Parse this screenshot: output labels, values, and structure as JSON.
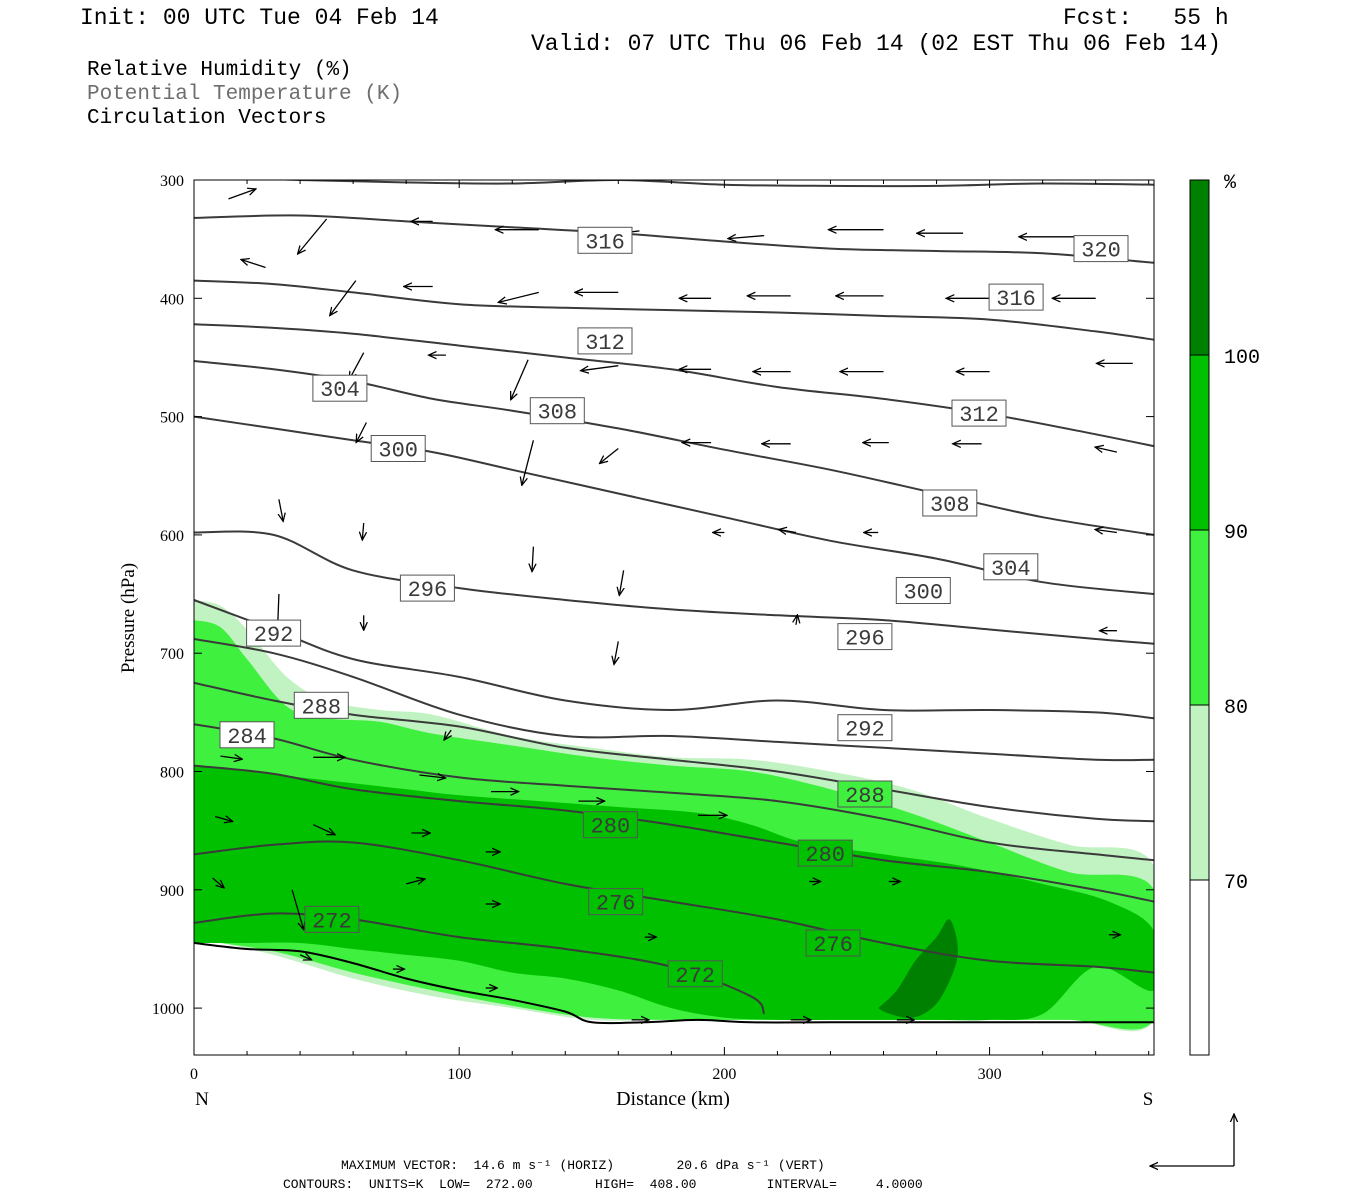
{
  "header": {
    "init": "Init: 00 UTC Tue 04 Feb 14",
    "fcst": "Fcst:   55 h",
    "valid": "Valid: 07 UTC Thu 06 Feb 14 (02 EST Thu 06 Feb 14)"
  },
  "legend_lines": [
    "Relative Humidity (%)",
    "Potential Temperature (K)",
    "Circulation Vectors"
  ],
  "footer": {
    "line1": "MAXIMUM VECTOR:  14.6 m s⁻¹ (HORIZ)        20.6 dPa s⁻¹ (VERT)",
    "line2": "CONTOURS:  UNITS=K  LOW=  272.00        HIGH=  408.00         INTERVAL=     4.0000"
  },
  "colors": {
    "rh_70_80": "#c1f2c1",
    "rh_80_90": "#3ff03f",
    "rh_90_100": "#00c000",
    "rh_100": "#008000",
    "contour": "#3a3a3a"
  },
  "chart_data": {
    "type": "cross-section",
    "xlabel": "Distance (km)",
    "ylabel": "Pressure (hPa)",
    "xlim": [
      0,
      362
    ],
    "ylim": [
      1040,
      300
    ],
    "xticks": [
      "0",
      "100",
      "200",
      "300"
    ],
    "yticks": [
      "300",
      "400",
      "500",
      "600",
      "700",
      "800",
      "900",
      "1000"
    ],
    "x_end_labels": {
      "left": "N",
      "right": "S"
    },
    "colorbar": {
      "unit": "%",
      "levels": [
        "70",
        "80",
        "90",
        "100"
      ],
      "fills": [
        "#ffffff",
        "#c1f2c1",
        "#3ff03f",
        "#00c000",
        "#008000"
      ]
    },
    "theta_contours": [
      {
        "label": "320",
        "x": [
          0,
          40,
          80,
          120,
          160,
          200,
          240,
          280,
          320,
          362
        ],
        "p": [
          297,
          300,
          302,
          303,
          300,
          304,
          305,
          305,
          303,
          304
        ]
      },
      {
        "label": "316",
        "x": [
          0,
          40,
          80,
          120,
          160,
          200,
          240,
          280,
          320,
          362
        ],
        "p": [
          332,
          330,
          335,
          340,
          345,
          352,
          358,
          360,
          362,
          370
        ]
      },
      {
        "label": "316",
        "x": [
          0,
          30,
          60,
          100,
          140,
          180,
          220,
          260,
          300,
          340,
          362
        ],
        "p": [
          385,
          388,
          395,
          405,
          408,
          410,
          412,
          415,
          418,
          428,
          435
        ]
      },
      {
        "label": "312",
        "x": [
          0,
          30,
          60,
          100,
          140,
          180,
          220,
          260,
          300,
          340,
          362
        ],
        "p": [
          422,
          425,
          430,
          440,
          450,
          460,
          475,
          485,
          498,
          515,
          525
        ]
      },
      {
        "label": "308",
        "x": [
          0,
          30,
          60,
          90,
          120,
          160,
          200,
          240,
          280,
          320,
          362
        ],
        "p": [
          453,
          460,
          470,
          485,
          495,
          510,
          528,
          545,
          565,
          585,
          600
        ]
      },
      {
        "label": "304",
        "x": [
          0,
          30,
          60,
          90,
          120,
          160,
          200,
          240,
          280,
          320,
          362
        ],
        "p": [
          500,
          510,
          520,
          530,
          545,
          565,
          585,
          605,
          620,
          640,
          650
        ]
      },
      {
        "label": "300",
        "x": [
          0,
          30,
          60,
          100,
          140,
          180,
          220,
          260,
          300,
          340,
          362
        ],
        "p": [
          598,
          600,
          630,
          645,
          655,
          663,
          668,
          672,
          680,
          688,
          692
        ]
      },
      {
        "label": "296",
        "x": [
          0,
          30,
          60,
          100,
          140,
          180,
          220,
          260,
          300,
          340,
          362
        ],
        "p": [
          655,
          680,
          705,
          720,
          740,
          748,
          740,
          748,
          748,
          750,
          755
        ]
      },
      {
        "label": "292",
        "x": [
          0,
          30,
          60,
          100,
          140,
          180,
          220,
          260,
          300,
          340,
          362
        ],
        "p": [
          688,
          700,
          720,
          752,
          770,
          770,
          775,
          780,
          785,
          790,
          790
        ]
      },
      {
        "label": "288",
        "x": [
          0,
          30,
          60,
          100,
          140,
          180,
          220,
          260,
          300,
          340,
          362
        ],
        "p": [
          725,
          740,
          752,
          762,
          780,
          790,
          800,
          815,
          830,
          840,
          842
        ]
      },
      {
        "label": "284",
        "x": [
          0,
          30,
          60,
          100,
          140,
          180,
          220,
          260,
          300,
          340,
          362
        ],
        "p": [
          760,
          772,
          790,
          805,
          812,
          818,
          825,
          840,
          860,
          870,
          875
        ]
      },
      {
        "label": "280",
        "x": [
          0,
          30,
          60,
          100,
          140,
          180,
          220,
          260,
          300,
          340,
          362
        ],
        "p": [
          795,
          802,
          815,
          825,
          833,
          845,
          860,
          875,
          885,
          900,
          910
        ]
      },
      {
        "label": "276",
        "x": [
          0,
          30,
          60,
          100,
          140,
          180,
          220,
          260,
          300,
          340,
          362
        ],
        "p": [
          870,
          862,
          860,
          875,
          895,
          910,
          925,
          945,
          960,
          965,
          970
        ]
      },
      {
        "label": "272",
        "x": [
          0,
          30,
          60,
          100,
          140,
          180,
          210,
          215
        ],
        "p": [
          928,
          920,
          925,
          940,
          950,
          965,
          990,
          1005
        ]
      }
    ],
    "contour_labels": [
      {
        "text": "316",
        "x": 155,
        "p": 351
      },
      {
        "text": "320",
        "x": 342,
        "p": 358
      },
      {
        "text": "316",
        "x": 310,
        "p": 399
      },
      {
        "text": "312",
        "x": 155,
        "p": 436
      },
      {
        "text": "312",
        "x": 296,
        "p": 497
      },
      {
        "text": "304",
        "x": 55,
        "p": 476
      },
      {
        "text": "308",
        "x": 137,
        "p": 495
      },
      {
        "text": "300",
        "x": 77,
        "p": 527
      },
      {
        "text": "308",
        "x": 285,
        "p": 573
      },
      {
        "text": "304",
        "x": 308,
        "p": 627
      },
      {
        "text": "296",
        "x": 88,
        "p": 645
      },
      {
        "text": "300",
        "x": 275,
        "p": 647
      },
      {
        "text": "292",
        "x": 30,
        "p": 683
      },
      {
        "text": "296",
        "x": 253,
        "p": 686
      },
      {
        "text": "288",
        "x": 48,
        "p": 744
      },
      {
        "text": "292",
        "x": 253,
        "p": 763
      },
      {
        "text": "284",
        "x": 20,
        "p": 769
      },
      {
        "text": "288",
        "x": 253,
        "p": 819
      },
      {
        "text": "280",
        "x": 157,
        "p": 845
      },
      {
        "text": "280",
        "x": 238,
        "p": 869
      },
      {
        "text": "276",
        "x": 159,
        "p": 910
      },
      {
        "text": "272",
        "x": 52,
        "p": 925
      },
      {
        "text": "276",
        "x": 241,
        "p": 945
      },
      {
        "text": "272",
        "x": 189,
        "p": 971
      }
    ],
    "rh_regions": [
      {
        "level": "70-80",
        "x": [
          0,
          10,
          20,
          35,
          50,
          70,
          90,
          120,
          150,
          180,
          210,
          240,
          270,
          300,
          330,
          362,
          362,
          330,
          300,
          270,
          240,
          210,
          180,
          150,
          120,
          90,
          60,
          30,
          0
        ],
        "p": [
          655,
          660,
          680,
          720,
          740,
          748,
          752,
          770,
          780,
          788,
          790,
          800,
          815,
          840,
          862,
          880,
          1010,
          1010,
          1010,
          1010,
          1010,
          1010,
          1010,
          1010,
          1000,
          990,
          975,
          955,
          940
        ]
      },
      {
        "level": "80-90",
        "x": [
          0,
          10,
          20,
          35,
          50,
          70,
          90,
          120,
          150,
          180,
          210,
          240,
          270,
          300,
          330,
          362,
          362,
          330,
          300,
          270,
          240,
          210,
          180,
          150,
          120,
          90,
          60,
          30,
          0
        ],
        "p": [
          672,
          678,
          705,
          745,
          755,
          758,
          768,
          778,
          788,
          795,
          800,
          815,
          835,
          860,
          885,
          900,
          1010,
          1010,
          1010,
          1010,
          1010,
          1010,
          1010,
          1008,
          998,
          985,
          970,
          952,
          942
        ]
      },
      {
        "level": "90-100",
        "x": [
          0,
          20,
          40,
          60,
          80,
          100,
          130,
          160,
          190,
          210,
          230,
          260,
          290,
          320,
          345,
          362,
          362,
          340,
          320,
          300,
          280,
          260,
          240,
          220,
          200,
          180,
          160,
          140,
          120,
          100,
          80,
          60,
          40,
          20,
          0
        ],
        "p": [
          795,
          800,
          805,
          810,
          815,
          820,
          825,
          830,
          835,
          845,
          860,
          870,
          880,
          895,
          910,
          935,
          985,
          965,
          1005,
          1010,
          1010,
          1010,
          1010,
          1010,
          1008,
          1000,
          985,
          975,
          970,
          960,
          955,
          950,
          945,
          945,
          945
        ]
      },
      {
        "level": "100",
        "x": [
          258,
          265,
          272,
          280,
          285,
          288,
          282,
          275,
          268,
          260
        ],
        "p": [
          1000,
          985,
          960,
          940,
          925,
          955,
          990,
          1005,
          1008,
          1003
        ]
      }
    ],
    "vectors": [
      {
        "x": 13,
        "p": 316,
        "dx": 19,
        "dp": -10
      },
      {
        "x": 50,
        "p": 333,
        "dx": -20,
        "dp": 35
      },
      {
        "x": 90,
        "p": 335,
        "dx": -15,
        "dp": 0
      },
      {
        "x": 130,
        "p": 342,
        "dx": -30,
        "dp": 0
      },
      {
        "x": 168,
        "p": 343,
        "dx": -28,
        "dp": 5
      },
      {
        "x": 215,
        "p": 347,
        "dx": -25,
        "dp": 3
      },
      {
        "x": 260,
        "p": 342,
        "dx": -38,
        "dp": 0
      },
      {
        "x": 290,
        "p": 345,
        "dx": -32,
        "dp": 0
      },
      {
        "x": 334,
        "p": 348,
        "dx": -42,
        "dp": 0
      },
      {
        "x": 27,
        "p": 374,
        "dx": -17,
        "dp": -8
      },
      {
        "x": 61,
        "p": 385,
        "dx": -18,
        "dp": 35
      },
      {
        "x": 90,
        "p": 390,
        "dx": -20,
        "dp": 0
      },
      {
        "x": 130,
        "p": 395,
        "dx": -28,
        "dp": 10
      },
      {
        "x": 160,
        "p": 395,
        "dx": -30,
        "dp": 0
      },
      {
        "x": 195,
        "p": 400,
        "dx": -22,
        "dp": 0
      },
      {
        "x": 225,
        "p": 398,
        "dx": -30,
        "dp": 0
      },
      {
        "x": 260,
        "p": 398,
        "dx": -33,
        "dp": 0
      },
      {
        "x": 300,
        "p": 400,
        "dx": -30,
        "dp": 0
      },
      {
        "x": 340,
        "p": 400,
        "dx": -30,
        "dp": 0
      },
      {
        "x": 95,
        "p": 448,
        "dx": -12,
        "dp": 0
      },
      {
        "x": 64,
        "p": 446,
        "dx": -10,
        "dp": 27
      },
      {
        "x": 126,
        "p": 452,
        "dx": -12,
        "dp": 40
      },
      {
        "x": 160,
        "p": 457,
        "dx": -26,
        "dp": 5
      },
      {
        "x": 195,
        "p": 460,
        "dx": -22,
        "dp": 0
      },
      {
        "x": 225,
        "p": 462,
        "dx": -26,
        "dp": 0
      },
      {
        "x": 260,
        "p": 462,
        "dx": -30,
        "dp": 0
      },
      {
        "x": 300,
        "p": 462,
        "dx": -23,
        "dp": 0
      },
      {
        "x": 354,
        "p": 455,
        "dx": -25,
        "dp": 0
      },
      {
        "x": 65,
        "p": 505,
        "dx": -7,
        "dp": 20
      },
      {
        "x": 128,
        "p": 520,
        "dx": -8,
        "dp": 45
      },
      {
        "x": 160,
        "p": 527,
        "dx": -13,
        "dp": 15
      },
      {
        "x": 195,
        "p": 522,
        "dx": -20,
        "dp": 0
      },
      {
        "x": 225,
        "p": 523,
        "dx": -20,
        "dp": 0
      },
      {
        "x": 262,
        "p": 522,
        "dx": -18,
        "dp": 0
      },
      {
        "x": 297,
        "p": 523,
        "dx": -20,
        "dp": 0
      },
      {
        "x": 348,
        "p": 530,
        "dx": -15,
        "dp": -5
      },
      {
        "x": 32,
        "p": 570,
        "dx": 3,
        "dp": 22
      },
      {
        "x": 64,
        "p": 590,
        "dx": -1,
        "dp": 17
      },
      {
        "x": 128,
        "p": 610,
        "dx": -1,
        "dp": 25
      },
      {
        "x": 162,
        "p": 630,
        "dx": -3,
        "dp": 25
      },
      {
        "x": 200,
        "p": 598,
        "dx": -8,
        "dp": 0
      },
      {
        "x": 227,
        "p": 598,
        "dx": -12,
        "dp": -3
      },
      {
        "x": 258,
        "p": 598,
        "dx": -10,
        "dp": 0
      },
      {
        "x": 348,
        "p": 598,
        "dx": -15,
        "dp": -3
      },
      {
        "x": 32,
        "p": 650,
        "dx": -1,
        "dp": 40
      },
      {
        "x": 64,
        "p": 668,
        "dx": 0,
        "dp": 15
      },
      {
        "x": 160,
        "p": 690,
        "dx": -3,
        "dp": 23
      },
      {
        "x": 227,
        "p": 676,
        "dx": 1,
        "dp": -10
      },
      {
        "x": 348,
        "p": 681,
        "dx": -12,
        "dp": 0
      },
      {
        "x": 97,
        "p": 765,
        "dx": -5,
        "dp": 10
      },
      {
        "x": 10,
        "p": 787,
        "dx": 15,
        "dp": 3
      },
      {
        "x": 45,
        "p": 788,
        "dx": 22,
        "dp": 0
      },
      {
        "x": 85,
        "p": 803,
        "dx": 18,
        "dp": 3
      },
      {
        "x": 112,
        "p": 817,
        "dx": 19,
        "dp": 0
      },
      {
        "x": 145,
        "p": 825,
        "dx": 18,
        "dp": 0
      },
      {
        "x": 190,
        "p": 837,
        "dx": 20,
        "dp": 0
      },
      {
        "x": 8,
        "p": 838,
        "dx": 12,
        "dp": 5
      },
      {
        "x": 45,
        "p": 845,
        "dx": 15,
        "dp": 10
      },
      {
        "x": 82,
        "p": 852,
        "dx": 13,
        "dp": 0
      },
      {
        "x": 110,
        "p": 868,
        "dx": 10,
        "dp": 0
      },
      {
        "x": 80,
        "p": 895,
        "dx": 13,
        "dp": -5
      },
      {
        "x": 110,
        "p": 912,
        "dx": 10,
        "dp": 0
      },
      {
        "x": 157,
        "p": 915,
        "dx": 8,
        "dp": 0
      },
      {
        "x": 7,
        "p": 890,
        "dx": 8,
        "dp": 10
      },
      {
        "x": 37,
        "p": 900,
        "dx": 8,
        "dp": 40
      },
      {
        "x": 232,
        "p": 893,
        "dx": 8,
        "dp": 0
      },
      {
        "x": 262,
        "p": 893,
        "dx": 8,
        "dp": 0
      },
      {
        "x": 232,
        "p": 940,
        "dx": 8,
        "dp": 5
      },
      {
        "x": 170,
        "p": 940,
        "dx": 8,
        "dp": 0
      },
      {
        "x": 345,
        "p": 938,
        "dx": 8,
        "dp": 0
      },
      {
        "x": 40,
        "p": 955,
        "dx": 8,
        "dp": 5
      },
      {
        "x": 75,
        "p": 967,
        "dx": 8,
        "dp": 0
      },
      {
        "x": 110,
        "p": 983,
        "dx": 8,
        "dp": 0
      },
      {
        "x": 165,
        "p": 1010,
        "dx": 12,
        "dp": 0
      },
      {
        "x": 225,
        "p": 1010,
        "dx": 14,
        "dp": 0
      },
      {
        "x": 265,
        "p": 1010,
        "dx": 12,
        "dp": 0
      }
    ],
    "terrain": {
      "x": [
        0,
        20,
        40,
        60,
        80,
        100,
        120,
        140,
        150,
        170,
        190,
        210,
        240,
        280,
        320,
        362
      ],
      "p": [
        945,
        950,
        952,
        962,
        975,
        985,
        993,
        1003,
        1012,
        1012,
        1010,
        1012,
        1012,
        1012,
        1012,
        1012
      ]
    }
  }
}
